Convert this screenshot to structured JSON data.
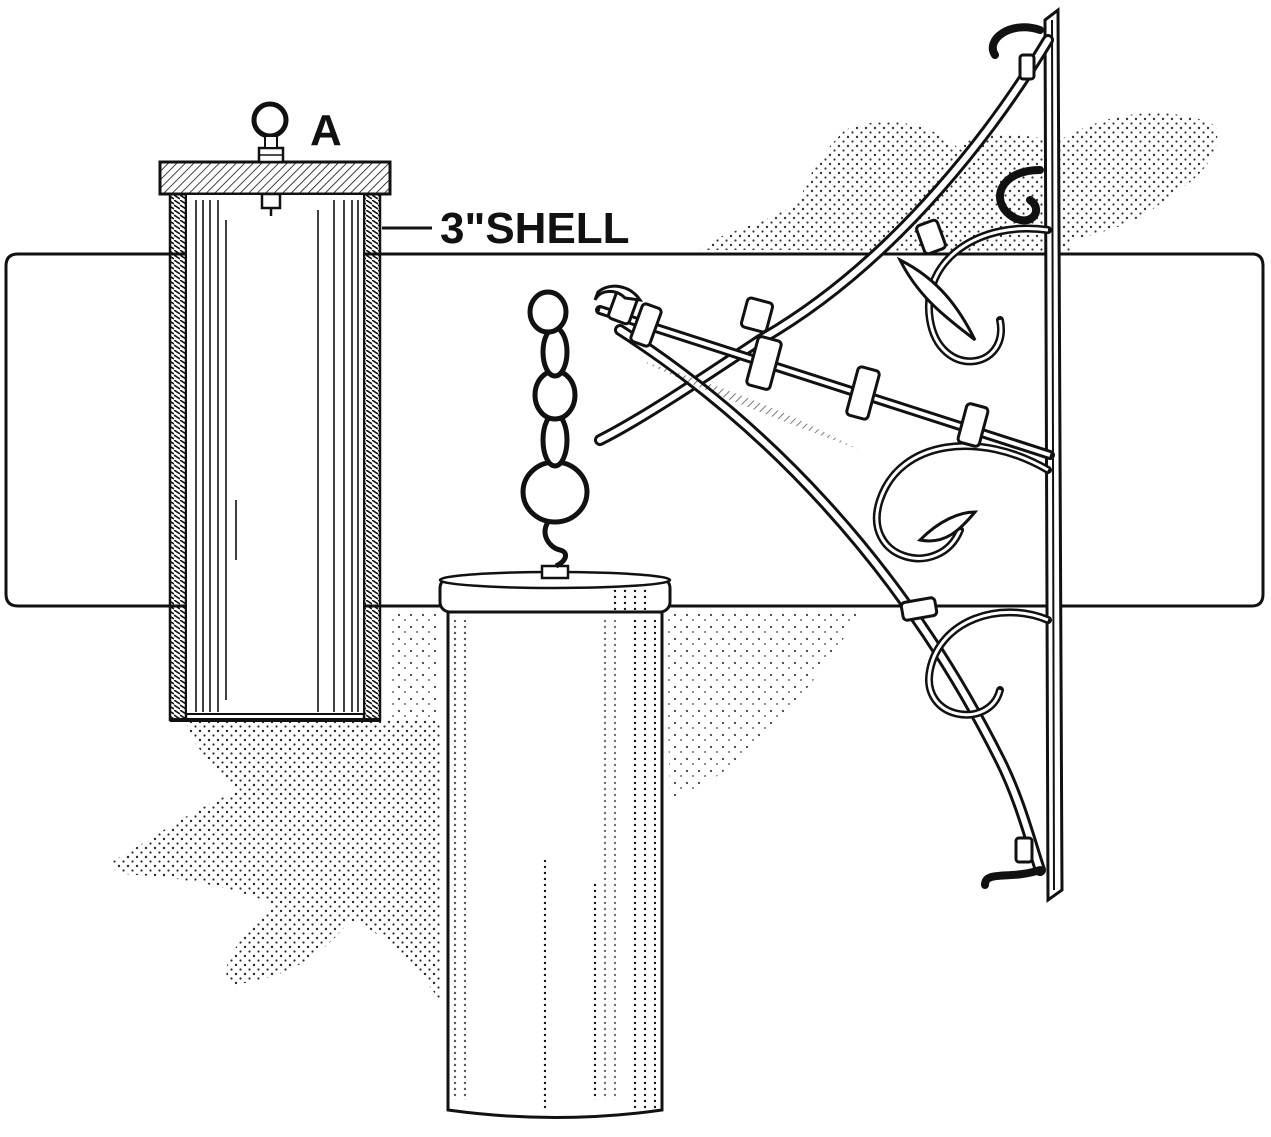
{
  "labels": {
    "eyebolt": "A",
    "shell": "3\"SHELL"
  },
  "colors": {
    "ink": "#111111",
    "paper": "#ffffff"
  }
}
